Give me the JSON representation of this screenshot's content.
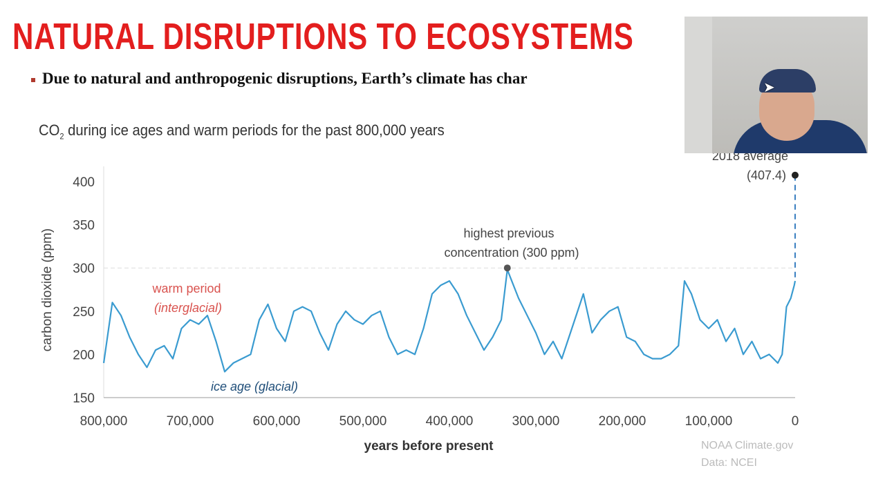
{
  "slide": {
    "title": "NATURAL DISRUPTIONS TO ECOSYSTEMS",
    "bullet": "Due to natural and anthropogenic disruptions, Earth’s climate has char"
  },
  "chart_data": {
    "type": "line",
    "title_prefix": "CO",
    "title_sub": "2",
    "title_rest": " during ice ages and warm periods for the past 800,000 years",
    "xlabel": "years before present",
    "ylabel": "carbon dioxide (ppm)",
    "xlim": [
      800000,
      0
    ],
    "ylim": [
      150,
      400
    ],
    "xticks": [
      "800,000",
      "700,000",
      "600,000",
      "500,000",
      "400,000",
      "300,000",
      "200,000",
      "100,000",
      "0"
    ],
    "xtick_values": [
      800000,
      700000,
      600000,
      500000,
      400000,
      300000,
      200000,
      100000,
      0
    ],
    "yticks": [
      "150",
      "200",
      "250",
      "300",
      "350",
      "400"
    ],
    "ytick_values": [
      150,
      200,
      250,
      300,
      350,
      400
    ],
    "line_color": "#3a9bd0",
    "series": [
      {
        "x": [
          800000,
          790000,
          780000,
          770000,
          760000,
          750000,
          740000,
          730000,
          720000,
          710000,
          700000,
          690000,
          680000,
          670000,
          660000,
          650000,
          640000,
          630000,
          620000,
          610000,
          600000,
          590000,
          580000,
          570000,
          560000,
          550000,
          540000,
          530000,
          520000,
          510000,
          500000,
          490000,
          480000,
          470000,
          460000,
          450000,
          440000,
          430000,
          420000,
          410000,
          400000,
          390000,
          380000,
          370000,
          360000,
          350000,
          340000,
          333000,
          320000,
          310000,
          300000,
          290000,
          280000,
          270000,
          260000,
          245000,
          235000,
          225000,
          215000,
          205000,
          195000,
          185000,
          175000,
          165000,
          155000,
          145000,
          135000,
          128000,
          120000,
          110000,
          100000,
          90000,
          80000,
          70000,
          60000,
          50000,
          40000,
          30000,
          20000,
          15000,
          10000,
          5000,
          1000,
          0
        ],
        "y": [
          190,
          260,
          245,
          220,
          200,
          185,
          205,
          210,
          195,
          230,
          240,
          235,
          245,
          215,
          180,
          190,
          195,
          200,
          240,
          258,
          230,
          215,
          250,
          255,
          250,
          225,
          205,
          235,
          250,
          240,
          235,
          245,
          250,
          220,
          200,
          205,
          200,
          230,
          270,
          280,
          285,
          270,
          245,
          225,
          205,
          220,
          240,
          298,
          265,
          245,
          225,
          200,
          215,
          195,
          225,
          270,
          225,
          240,
          250,
          255,
          220,
          215,
          200,
          195,
          195,
          200,
          210,
          285,
          270,
          240,
          230,
          240,
          215,
          230,
          200,
          215,
          195,
          200,
          190,
          200,
          255,
          265,
          280,
          285
        ]
      }
    ],
    "reference_line": {
      "value": 300
    },
    "annotations": {
      "warm_line1": "warm period",
      "warm_line2": "(interglacial)",
      "ice": "ice age (glacial)",
      "highest_line1": "highest previous",
      "highest_line2": "concentration (300 ppm)",
      "highest_x": 333000,
      "highest_y": 300,
      "latest_line1": "2018 average",
      "latest_line2": "(407.4)",
      "latest_value": 407.4,
      "credit1": "NOAA Climate.gov",
      "credit2": "Data: NCEI"
    },
    "warm_color": "#d9534f",
    "ice_color": "#1f4e79"
  }
}
